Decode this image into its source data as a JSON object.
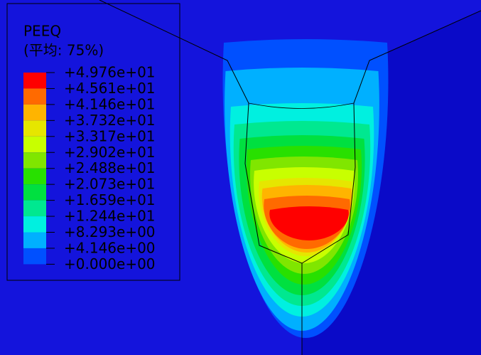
{
  "legend": {
    "title": "PEEQ",
    "subtitle": "(平均: 75%)",
    "labels": [
      "+4.976e+01",
      "+4.561e+01",
      "+4.146e+01",
      "+3.732e+01",
      "+3.317e+01",
      "+2.902e+01",
      "+2.488e+01",
      "+2.073e+01",
      "+1.659e+01",
      "+1.244e+01",
      "+8.293e+00",
      "+4.146e+00",
      "+0.000e+00"
    ]
  }
}
